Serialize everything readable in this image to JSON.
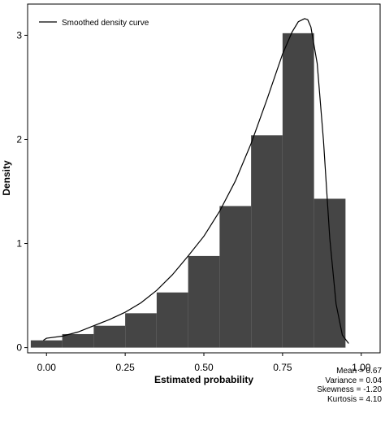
{
  "chart_data": {
    "type": "bar",
    "xlabel": "Estimated probability",
    "ylabel": "Density",
    "xlim": [
      -0.06,
      1.06
    ],
    "ylim": [
      -0.05,
      3.3
    ],
    "x_ticks": [
      0.0,
      0.25,
      0.5,
      0.75,
      1.0
    ],
    "x_tick_labels": [
      "0.00",
      "0.25",
      "0.50",
      "0.75",
      "1.00"
    ],
    "y_ticks": [
      0,
      1,
      2,
      3
    ],
    "y_tick_labels": [
      "0",
      "1",
      "2",
      "3"
    ],
    "grid": false,
    "bar_color": "#454545",
    "bins": [
      {
        "start": -0.05,
        "end": 0.05,
        "density": 0.07
      },
      {
        "start": 0.05,
        "end": 0.15,
        "density": 0.13
      },
      {
        "start": 0.15,
        "end": 0.25,
        "density": 0.21
      },
      {
        "start": 0.25,
        "end": 0.35,
        "density": 0.33
      },
      {
        "start": 0.35,
        "end": 0.45,
        "density": 0.53
      },
      {
        "start": 0.45,
        "end": 0.55,
        "density": 0.88
      },
      {
        "start": 0.55,
        "end": 0.65,
        "density": 1.36
      },
      {
        "start": 0.65,
        "end": 0.75,
        "density": 2.04
      },
      {
        "start": 0.75,
        "end": 0.85,
        "density": 3.02
      },
      {
        "start": 0.85,
        "end": 0.95,
        "density": 1.43
      }
    ],
    "curve": {
      "name": "Smoothed density curve",
      "x": [
        -0.01,
        0.0,
        0.05,
        0.1,
        0.15,
        0.2,
        0.25,
        0.3,
        0.35,
        0.4,
        0.45,
        0.5,
        0.55,
        0.6,
        0.65,
        0.7,
        0.75,
        0.78,
        0.8,
        0.82,
        0.83,
        0.84,
        0.86,
        0.88,
        0.9,
        0.92,
        0.94,
        0.96
      ],
      "y": [
        0.07,
        0.09,
        0.11,
        0.15,
        0.21,
        0.27,
        0.34,
        0.43,
        0.55,
        0.7,
        0.88,
        1.07,
        1.31,
        1.6,
        1.96,
        2.38,
        2.82,
        3.03,
        3.13,
        3.16,
        3.15,
        3.08,
        2.73,
        1.99,
        1.05,
        0.42,
        0.12,
        0.04
      ]
    },
    "legend": {
      "label": "Smoothed density curve",
      "position": "top-left"
    },
    "stats": [
      "Mean = 0.67",
      "Variance = 0.04",
      "Skewness = -1.20",
      "Kurtosis = 4.10"
    ]
  }
}
